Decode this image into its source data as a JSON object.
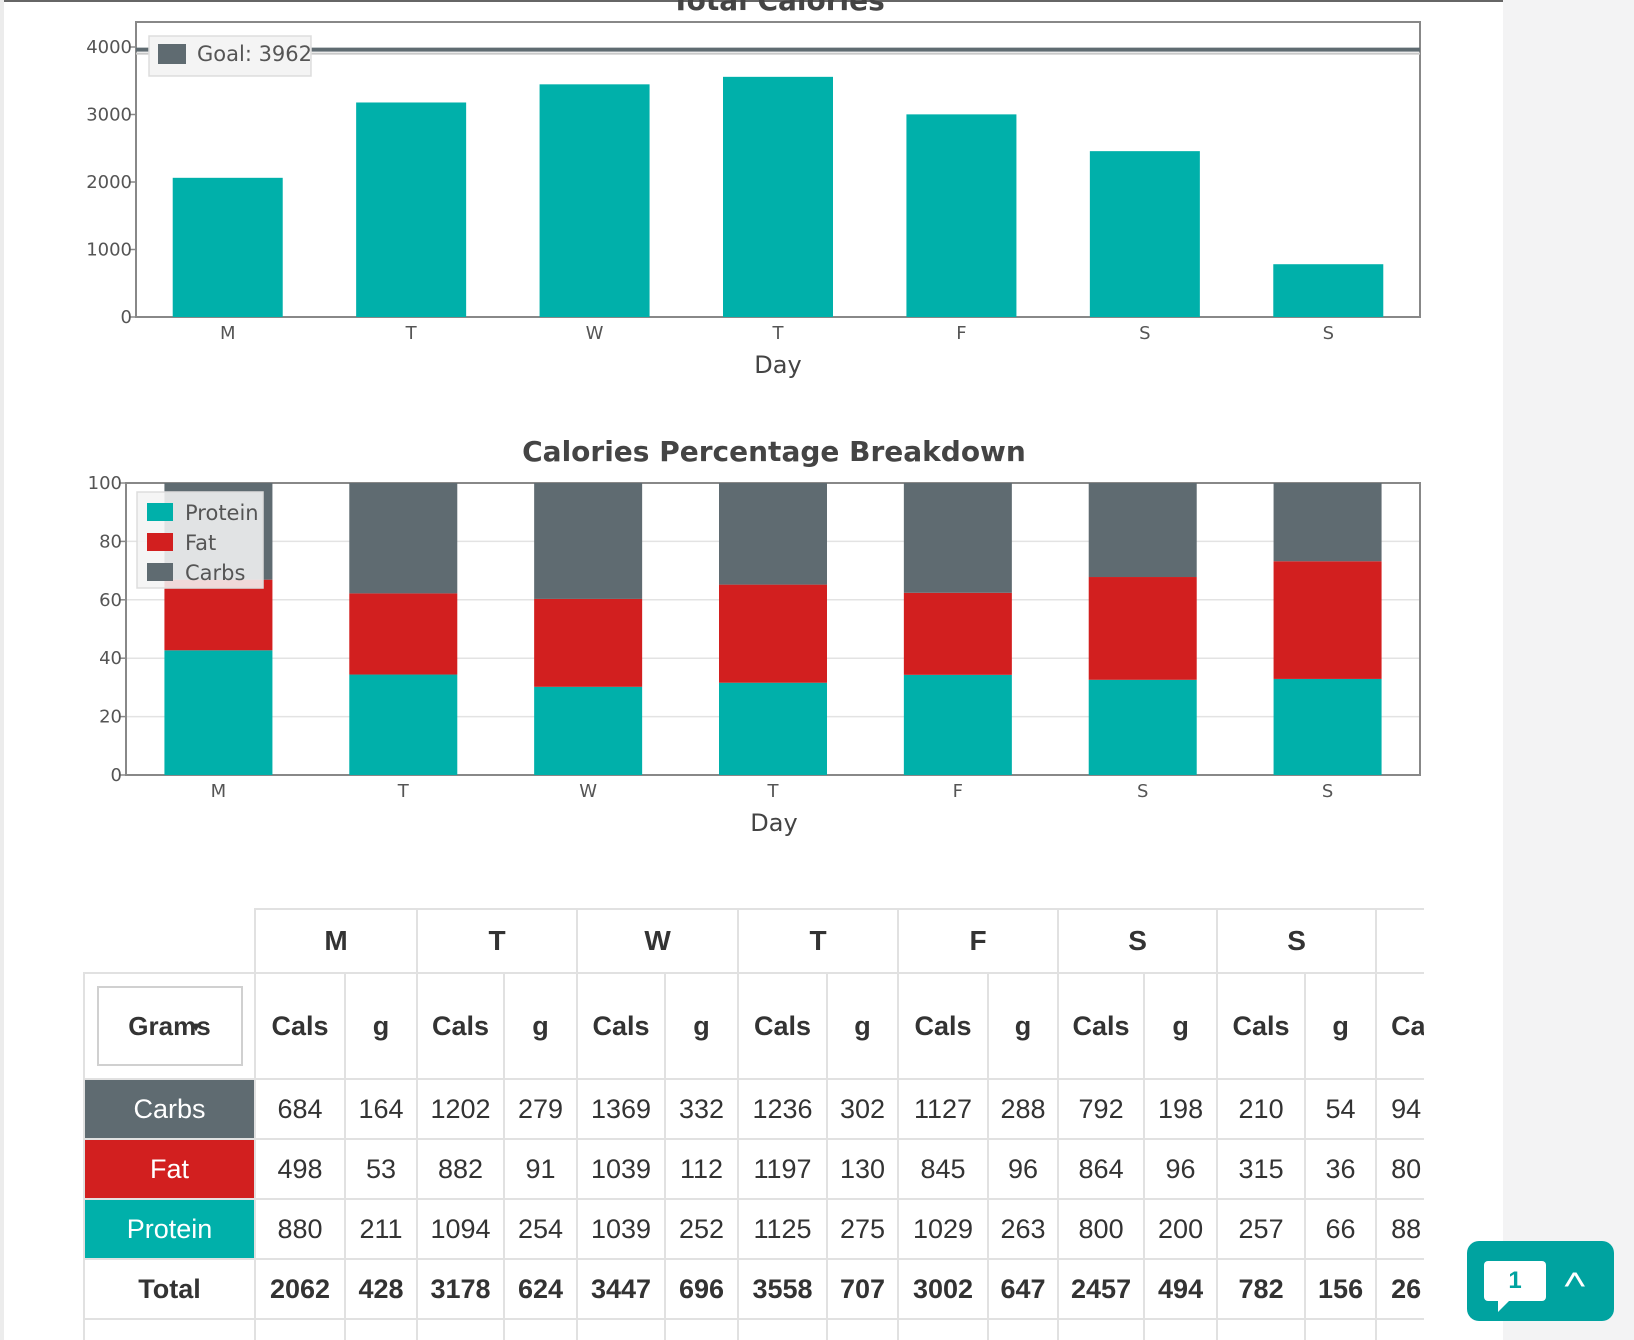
{
  "chart_data": [
    {
      "type": "bar",
      "title": "Total Calories",
      "categories": [
        "M",
        "T",
        "W",
        "T",
        "F",
        "S",
        "S"
      ],
      "values": [
        2062,
        3178,
        3447,
        3558,
        3002,
        2457,
        782
      ],
      "xlabel": "Day",
      "ylabel": "",
      "ylim": [
        0,
        4000
      ],
      "yticks": [
        0,
        1000,
        2000,
        3000,
        4000
      ],
      "goal_line": {
        "label": "Goal: 3962",
        "value": 3962
      },
      "legend_position": "top-left",
      "colors": {
        "bar": "#00b0aa",
        "goal": "#5f6b71"
      }
    },
    {
      "type": "bar",
      "stacked": true,
      "title": "Calories Percentage Breakdown",
      "categories": [
        "M",
        "T",
        "W",
        "T",
        "F",
        "S",
        "S"
      ],
      "series": [
        {
          "name": "Protein",
          "color": "#00b0aa",
          "values": [
            42.7,
            34.4,
            30.2,
            31.6,
            34.3,
            32.6,
            32.9
          ]
        },
        {
          "name": "Fat",
          "color": "#d21f1f",
          "values": [
            24.2,
            27.8,
            30.1,
            33.6,
            28.1,
            35.2,
            40.3
          ]
        },
        {
          "name": "Carbs",
          "color": "#5f6b71",
          "values": [
            33.1,
            37.8,
            39.7,
            34.8,
            37.6,
            32.2,
            26.8
          ]
        }
      ],
      "xlabel": "Day",
      "ylabel": "",
      "ylim": [
        0,
        100
      ],
      "yticks": [
        0,
        20,
        40,
        60,
        80,
        100
      ],
      "grid": true,
      "legend_position": "top-left"
    }
  ],
  "table": {
    "unit_select": {
      "value": "Grams"
    },
    "days": [
      "M",
      "T",
      "W",
      "T",
      "F",
      "S",
      "S"
    ],
    "col_cals": "Cals",
    "col_g": "g",
    "partial_head": "Ca",
    "rows": [
      {
        "label": "Carbs",
        "cells": [
          "684",
          "164",
          "1202",
          "279",
          "1369",
          "332",
          "1236",
          "302",
          "1127",
          "288",
          "792",
          "198",
          "210",
          "54"
        ],
        "partial": "94"
      },
      {
        "label": "Fat",
        "cells": [
          "498",
          "53",
          "882",
          "91",
          "1039",
          "112",
          "1197",
          "130",
          "845",
          "96",
          "864",
          "96",
          "315",
          "36"
        ],
        "partial": "80"
      },
      {
        "label": "Protein",
        "cells": [
          "880",
          "211",
          "1094",
          "254",
          "1039",
          "252",
          "1125",
          "275",
          "1029",
          "263",
          "800",
          "200",
          "257",
          "66"
        ],
        "partial": "88"
      },
      {
        "label": "Total",
        "cells": [
          "2062",
          "428",
          "3178",
          "624",
          "3447",
          "696",
          "3558",
          "707",
          "3002",
          "647",
          "2457",
          "494",
          "782",
          "156"
        ],
        "partial": "26"
      }
    ]
  },
  "chat": {
    "badge_count": "1",
    "icon": "chat-bubble-icon",
    "scroll_icon": "chevron-up-icon"
  }
}
